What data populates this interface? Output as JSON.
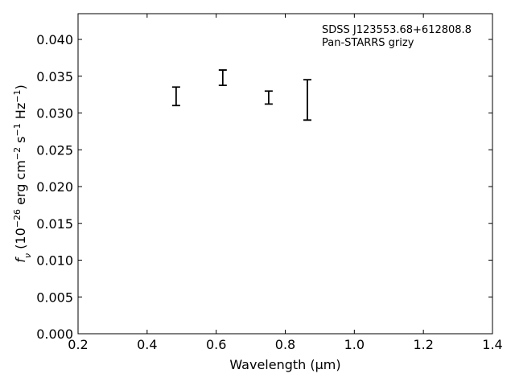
{
  "chart_data": {
    "type": "errorbar",
    "annotation": [
      "SDSS J123553.68+612808.8",
      "Pan-STARRS grizy"
    ],
    "xlabel": "Wavelength (μm)",
    "ylabel": [
      {
        "text": "f"
      },
      {
        "text": "ν",
        "shift": "sub"
      },
      {
        "text": " (10"
      },
      {
        "text": "−26",
        "shift": "super"
      },
      {
        "text": " erg cm"
      },
      {
        "text": "−2",
        "shift": "super"
      },
      {
        "text": " s"
      },
      {
        "text": "−1",
        "shift": "super"
      },
      {
        "text": " Hz"
      },
      {
        "text": "−1",
        "shift": "super"
      },
      {
        "text": ")"
      }
    ],
    "x": [
      0.484,
      0.619,
      0.752,
      0.864
    ],
    "values": [
      0.03227,
      0.0348,
      0.0321,
      0.03178
    ],
    "errors": [
      0.00126,
      0.00104,
      0.00088,
      0.00274
    ],
    "color": "#000000",
    "xlim": [
      0.2,
      1.4
    ],
    "xticks": [
      0.2,
      0.4,
      0.6,
      0.8,
      {
        "value": 1.0,
        "label": "1.0"
      },
      1.2,
      1.4
    ],
    "ylim": [
      0,
      0.0435
    ],
    "yticks": [
      {
        "value": 0,
        "label": "0.000"
      },
      {
        "value": 0.005,
        "label": "0.005"
      },
      {
        "value": 0.01,
        "label": "0.010"
      },
      {
        "value": 0.015,
        "label": "0.015"
      },
      {
        "value": 0.02,
        "label": "0.020"
      },
      {
        "value": 0.025,
        "label": "0.025"
      },
      {
        "value": 0.03,
        "label": "0.030"
      },
      {
        "value": 0.035,
        "label": "0.035"
      },
      {
        "value": 0.04,
        "label": "0.040"
      }
    ]
  }
}
